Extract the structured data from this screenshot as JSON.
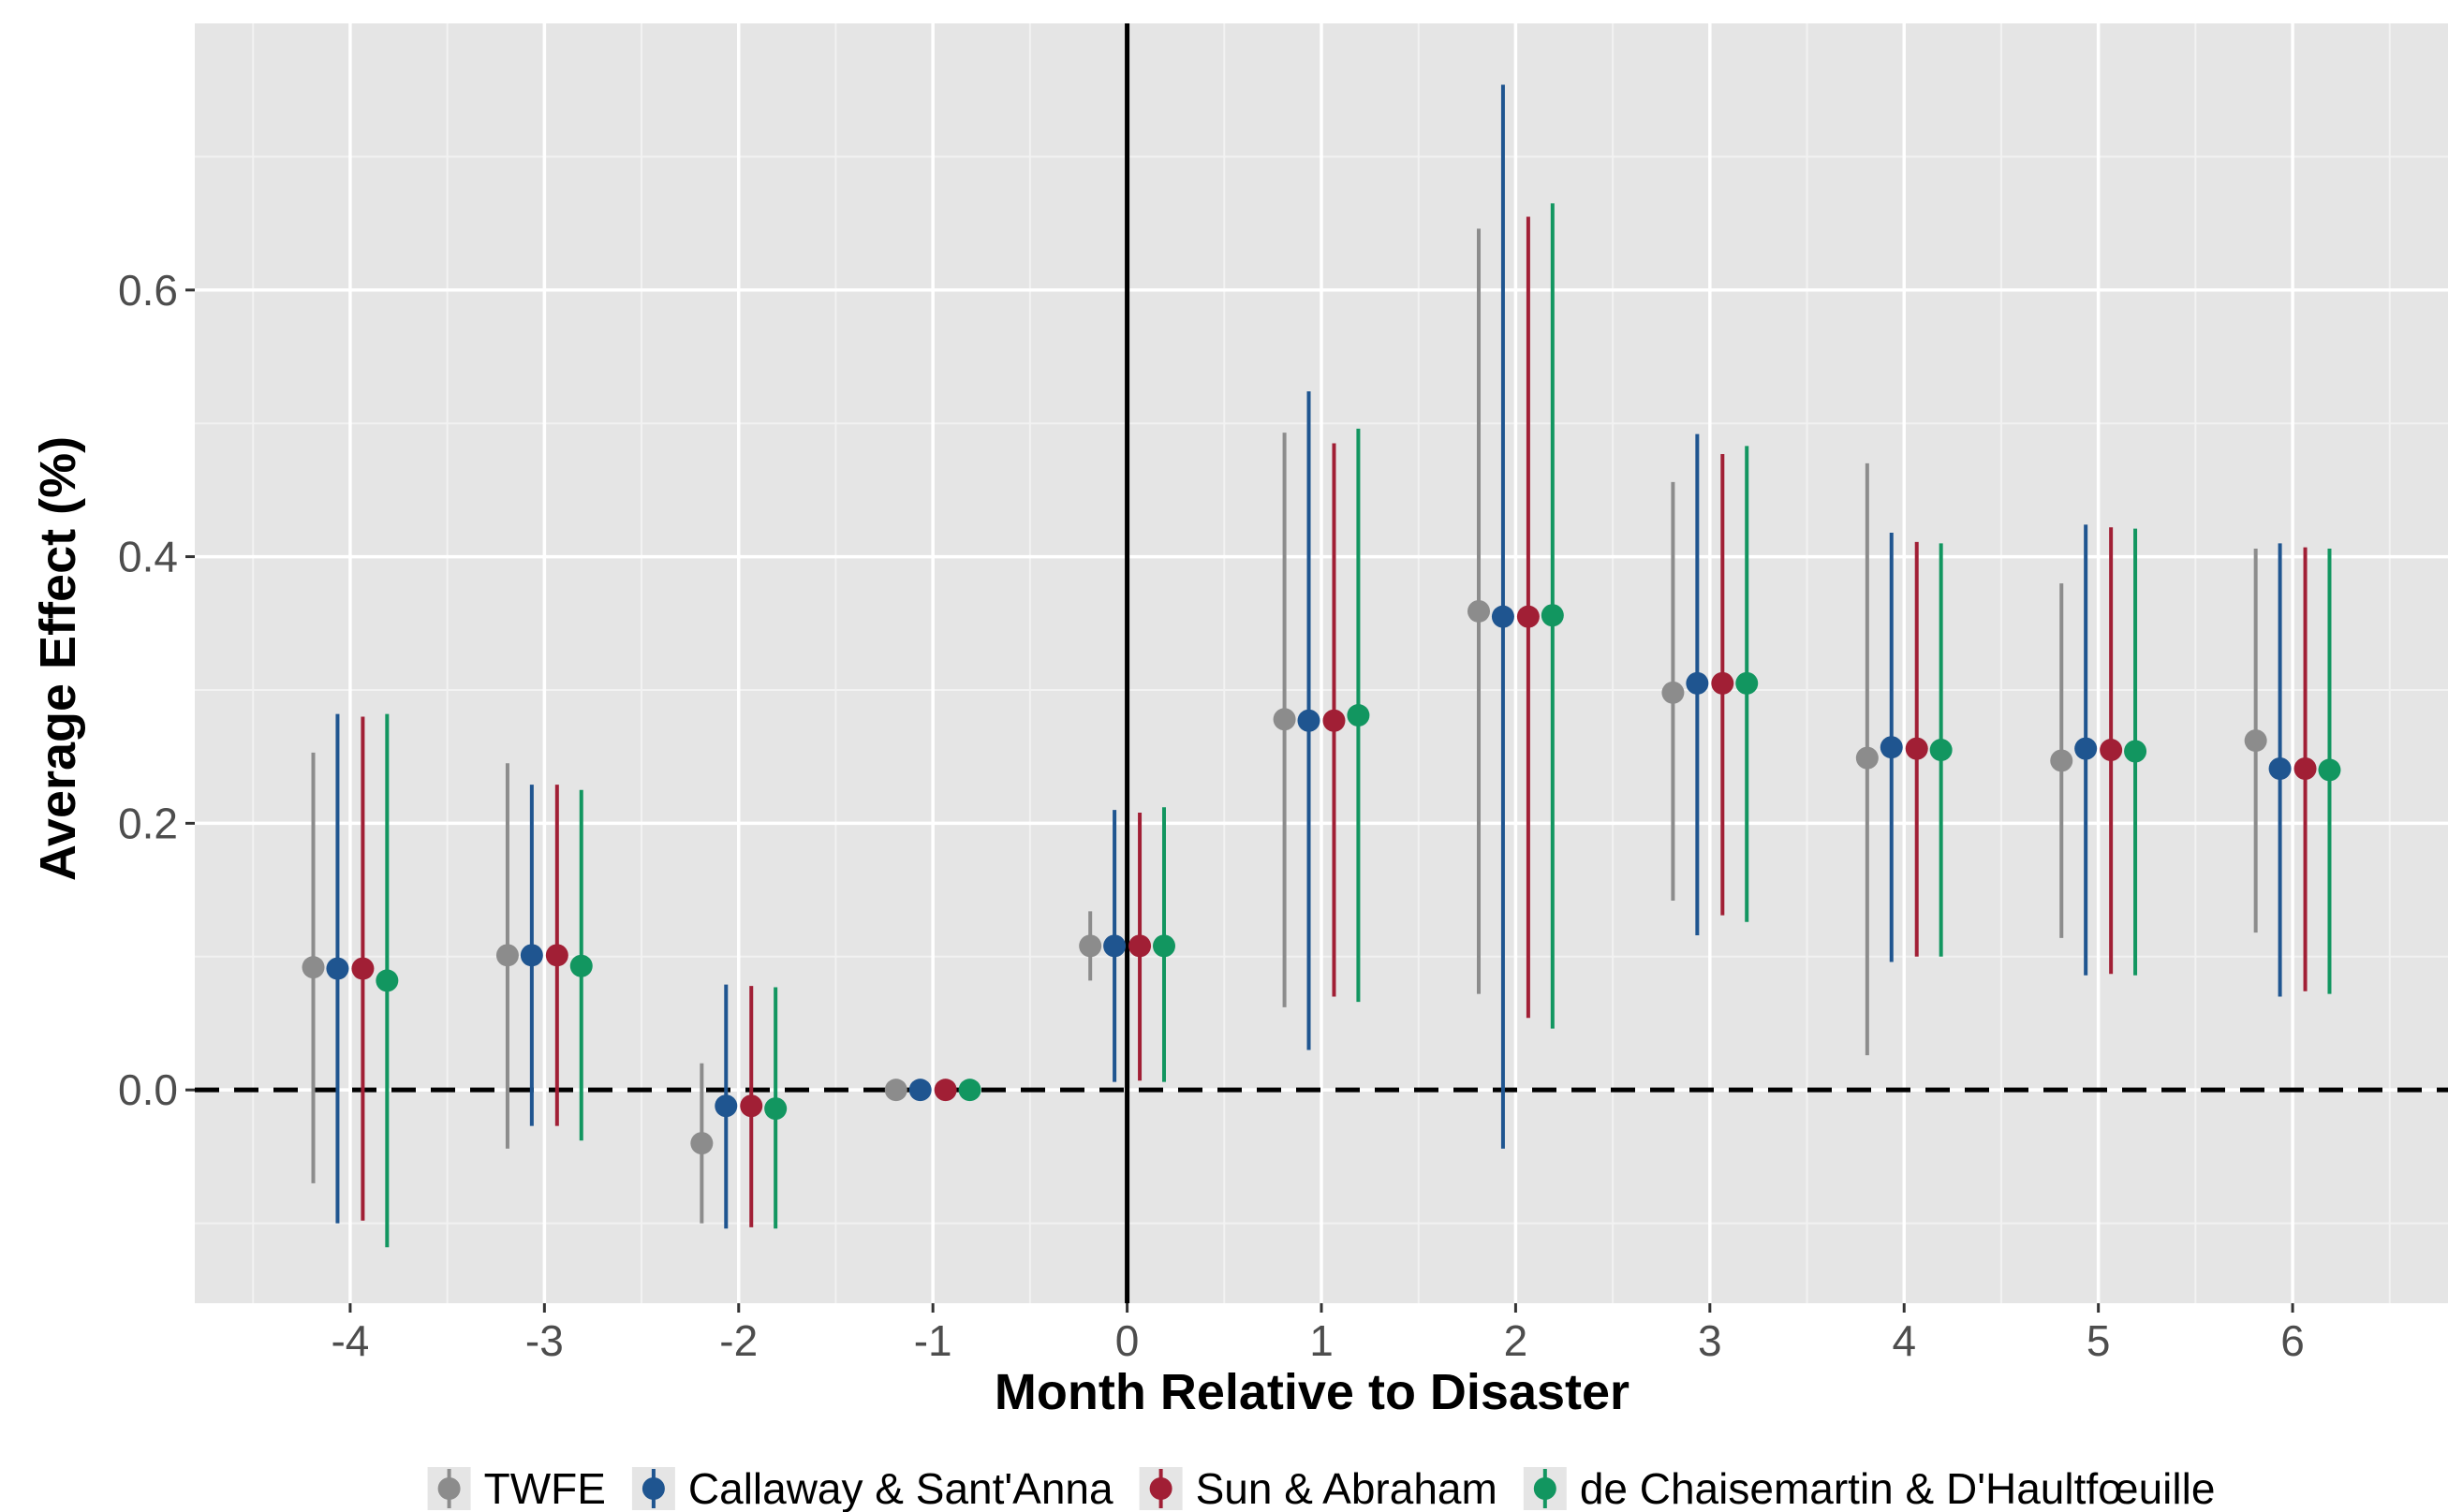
{
  "chart_data": {
    "type": "scatter",
    "subtype": "point-range event study",
    "title": "",
    "xlabel": "Month Relative to Disaster",
    "ylabel": "Average Effect (%)",
    "xlim": [
      -4.8,
      6.8
    ],
    "ylim": [
      -0.16,
      0.8
    ],
    "x_ticks": [
      -4,
      -3,
      -2,
      -1,
      0,
      1,
      2,
      3,
      4,
      5,
      6
    ],
    "x_tick_labels": [
      "-4",
      "-3",
      "-2",
      "-1",
      "0",
      "1",
      "2",
      "3",
      "4",
      "5",
      "6"
    ],
    "y_ticks": [
      0.0,
      0.2,
      0.4,
      0.6
    ],
    "y_tick_labels": [
      "0.0",
      "0.2",
      "0.4",
      "0.6"
    ],
    "grid": true,
    "vertical_reference_line": 0,
    "horizontal_reference_line": 0,
    "legend_position": "bottom",
    "x": [
      -4,
      -3,
      -2,
      -1,
      0,
      1,
      2,
      3,
      4,
      5,
      6
    ],
    "series": [
      {
        "name": "TWFE",
        "color": "#8c8c8c",
        "offset": -0.19,
        "y": [
          0.092,
          0.101,
          -0.04,
          0.0,
          0.108,
          0.278,
          0.359,
          0.298,
          0.249,
          0.247,
          0.262
        ],
        "lower": [
          -0.07,
          -0.044,
          -0.1,
          0.0,
          0.082,
          0.062,
          0.072,
          0.142,
          0.026,
          0.114,
          0.118
        ],
        "upper": [
          0.253,
          0.245,
          0.02,
          0.0,
          0.134,
          0.493,
          0.646,
          0.456,
          0.47,
          0.38,
          0.406
        ]
      },
      {
        "name": "Callaway & Sant'Anna",
        "color": "#1f5590",
        "offset": -0.065,
        "y": [
          0.091,
          0.101,
          -0.012,
          0.0,
          0.108,
          0.277,
          0.355,
          0.305,
          0.257,
          0.256,
          0.241
        ],
        "lower": [
          -0.1,
          -0.027,
          -0.104,
          0.0,
          0.006,
          0.03,
          -0.044,
          0.116,
          0.096,
          0.086,
          0.07
        ],
        "upper": [
          0.282,
          0.229,
          0.079,
          0.0,
          0.21,
          0.524,
          0.754,
          0.492,
          0.418,
          0.424,
          0.41
        ]
      },
      {
        "name": "Sun & Abraham",
        "color": "#a11f35",
        "offset": 0.065,
        "y": [
          0.091,
          0.101,
          -0.012,
          0.0,
          0.108,
          0.277,
          0.355,
          0.305,
          0.256,
          0.255,
          0.241
        ],
        "lower": [
          -0.098,
          -0.027,
          -0.103,
          0.0,
          0.007,
          0.07,
          0.054,
          0.131,
          0.1,
          0.087,
          0.074
        ],
        "upper": [
          0.28,
          0.229,
          0.078,
          0.0,
          0.208,
          0.485,
          0.655,
          0.477,
          0.411,
          0.422,
          0.407
        ]
      },
      {
        "name": "de Chaisemartin & D'Haultfœuille",
        "color": "#129660",
        "offset": 0.19,
        "y": [
          0.082,
          0.093,
          -0.014,
          0.0,
          0.108,
          0.281,
          0.356,
          0.305,
          0.255,
          0.254,
          0.24
        ],
        "lower": [
          -0.118,
          -0.038,
          -0.104,
          0.0,
          0.006,
          0.066,
          0.046,
          0.126,
          0.1,
          0.086,
          0.072
        ],
        "upper": [
          0.282,
          0.225,
          0.077,
          0.0,
          0.212,
          0.496,
          0.665,
          0.483,
          0.41,
          0.421,
          0.406
        ]
      }
    ]
  }
}
